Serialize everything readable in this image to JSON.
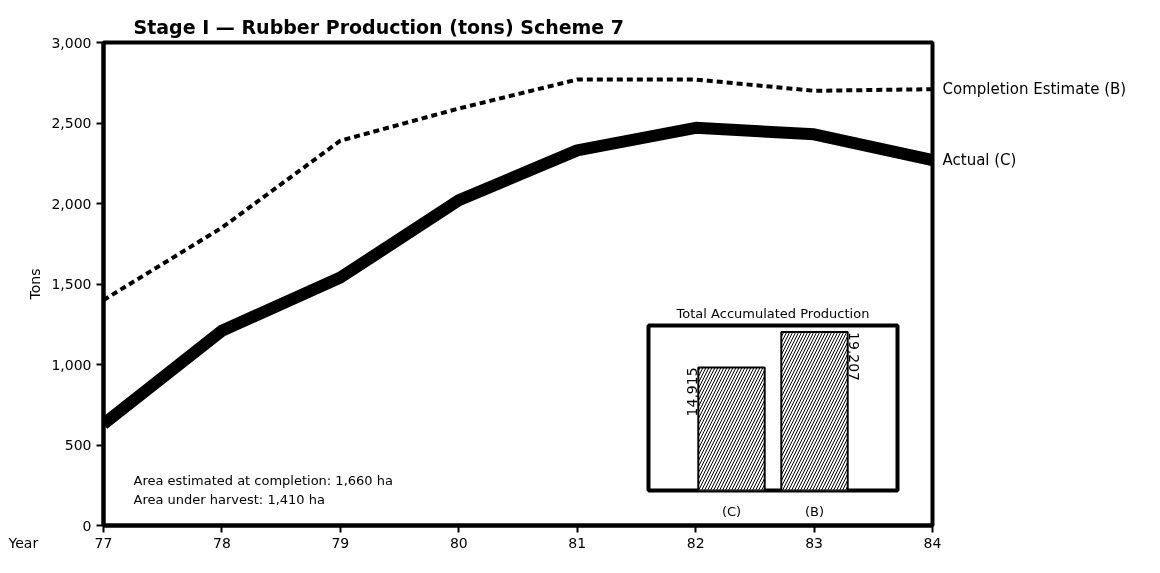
{
  "chart_data": [
    {
      "type": "line",
      "title": "Stage I — Rubber Production (tons) Scheme 7",
      "xlabel": "Year",
      "ylabel": "Tons",
      "x": [
        77,
        78,
        79,
        80,
        81,
        82,
        83,
        84
      ],
      "series": [
        {
          "name": "Completion Estimate (B)",
          "color": "#000000",
          "line_style": "dotted",
          "values": [
            1400,
            1850,
            2390,
            2590,
            2770,
            2770,
            2700,
            2710
          ]
        },
        {
          "name": "Actual (C)",
          "color": "#000000",
          "line_style": "solid",
          "values": [
            630,
            1210,
            1540,
            2020,
            2330,
            2470,
            2430,
            2270
          ]
        }
      ],
      "xlim": [
        77,
        84
      ],
      "xticks": [
        77,
        78,
        79,
        80,
        81,
        82,
        83,
        84
      ],
      "ylim": [
        0,
        3000
      ],
      "yticks": [
        0,
        {
          "value": 500,
          "label": "500"
        },
        {
          "value": 1000,
          "label": "1,000"
        },
        {
          "value": 1500,
          "label": "1,500"
        },
        {
          "value": 2000,
          "label": "2,000"
        },
        {
          "value": 2500,
          "label": "2,500"
        },
        {
          "value": 3000,
          "label": "3,000"
        }
      ],
      "grid": false,
      "annotations": [
        "Area estimated at completion:      1,660 ha",
        "Area under harvest:                     1,410 ha"
      ]
    },
    {
      "type": "bar",
      "title": "Total Accumulated Production",
      "categories": [
        "(C)",
        "(B)"
      ],
      "values": [
        14915,
        19207
      ],
      "colors": [
        "#000000",
        "#000000"
      ],
      "value_labels": [
        "14,915",
        "19,207"
      ],
      "ylim": [
        0,
        20000
      ],
      "tick_labels": "x",
      "grid": false
    }
  ]
}
